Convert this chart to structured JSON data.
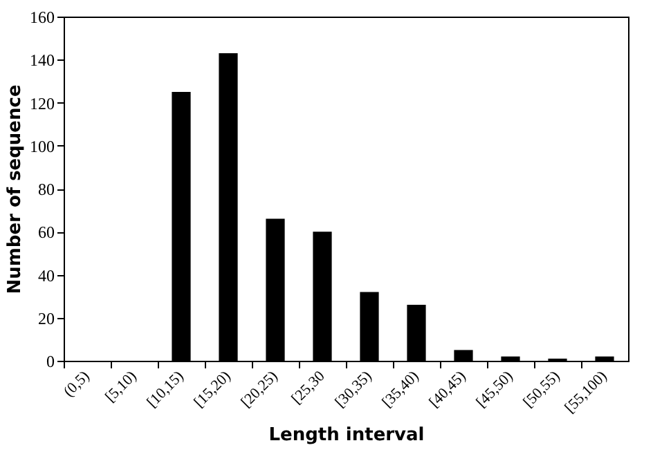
{
  "chart_data": {
    "type": "bar",
    "xlabel": "Length interval",
    "ylabel": "Number of sequence",
    "categories": [
      "(0,5)",
      "[5,10)",
      "[10,15)",
      "[15,20)",
      "[20,25)",
      "[25,30",
      "[30,35)",
      "[35,40)",
      "[40,45)",
      "[45,50)",
      "[50,55)",
      "[55,100)"
    ],
    "values": [
      0,
      0,
      125,
      143,
      66,
      60,
      32,
      26,
      5,
      2,
      1,
      2
    ],
    "color": "#000000",
    "ylim": [
      0,
      160
    ],
    "yticks": [
      0,
      20,
      40,
      60,
      80,
      100,
      120,
      140,
      160
    ],
    "grid": false
  }
}
